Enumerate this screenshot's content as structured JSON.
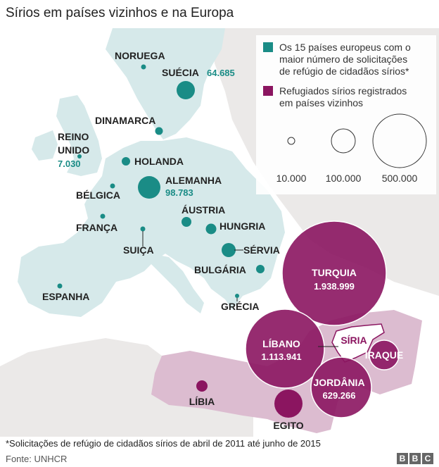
{
  "title": "Sírios em países vizinhos e na Europa",
  "legend": {
    "europe_text": "Os 15 países europeus com o maior número de solicitações de refúgio de cidadãos sírios*",
    "europe_lines": [
      "Os 15 países europeus com o",
      "maior número de solicitações",
      "de refúgio de cidadãos sírios*"
    ],
    "neighbors_lines": [
      "Refugiados sírios registrados",
      "em países vizinhos"
    ],
    "scale": [
      "10.000",
      "100.000",
      "500.000"
    ],
    "scale_values": [
      10000,
      100000,
      500000
    ]
  },
  "colors": {
    "europe": "#1a8c86",
    "neighbors": "#8b1560",
    "europe_land": "#d6e9ea",
    "neighbor_land": "#dcbcd0",
    "other_land": "#ebe9e8",
    "sea": "#ffffff"
  },
  "europe": [
    {
      "key": "noruega",
      "name": "NORUEGA",
      "value": null
    },
    {
      "key": "suecia",
      "name": "SUÉCIA",
      "value": "64.685",
      "numeric": 64685
    },
    {
      "key": "dinamarca",
      "name": "DINAMARCA",
      "value": null
    },
    {
      "key": "reino_unido",
      "name_lines": [
        "REINO",
        "UNIDO"
      ],
      "value": "7.030",
      "numeric": 7030
    },
    {
      "key": "holanda",
      "name": "HOLANDA",
      "value": null
    },
    {
      "key": "alemanha",
      "name": "ALEMANHA",
      "value": "98.783",
      "numeric": 98783
    },
    {
      "key": "belgica",
      "name": "BÉLGICA",
      "value": null
    },
    {
      "key": "austria",
      "name": "ÁUSTRIA",
      "value": null
    },
    {
      "key": "franca",
      "name": "FRANÇA",
      "value": null
    },
    {
      "key": "hungria",
      "name": "HUNGRIA",
      "value": null
    },
    {
      "key": "suica",
      "name": "SUIÇA",
      "value": null
    },
    {
      "key": "servia",
      "name": "SÉRVIA",
      "value": null
    },
    {
      "key": "bulgaria",
      "name": "BULGÁRIA",
      "value": null
    },
    {
      "key": "espanha",
      "name": "ESPANHA",
      "value": null
    },
    {
      "key": "grecia",
      "name": "GRÉCIA",
      "value": null
    }
  ],
  "neighbors": [
    {
      "key": "turquia",
      "name": "TURQUIA",
      "value": "1.938.999",
      "numeric": 1938999
    },
    {
      "key": "libano",
      "name": "LÍBANO",
      "value": "1.113.941",
      "numeric": 1113941
    },
    {
      "key": "jordania",
      "name": "JORDÂNIA",
      "value": "629.266",
      "numeric": 629266
    },
    {
      "key": "iraque",
      "name": "IRAQUE",
      "value": null
    },
    {
      "key": "egito",
      "name": "EGITO",
      "value": null
    },
    {
      "key": "libia",
      "name": "LÍBIA",
      "value": null
    }
  ],
  "syria_label": "SÍRIA",
  "footnote": "*Solicitações de refúgio de cidadãos sírios de abril de 2011 até junho de 2015",
  "source": "Fonte: UNHCR",
  "logo": [
    "B",
    "B",
    "C"
  ]
}
